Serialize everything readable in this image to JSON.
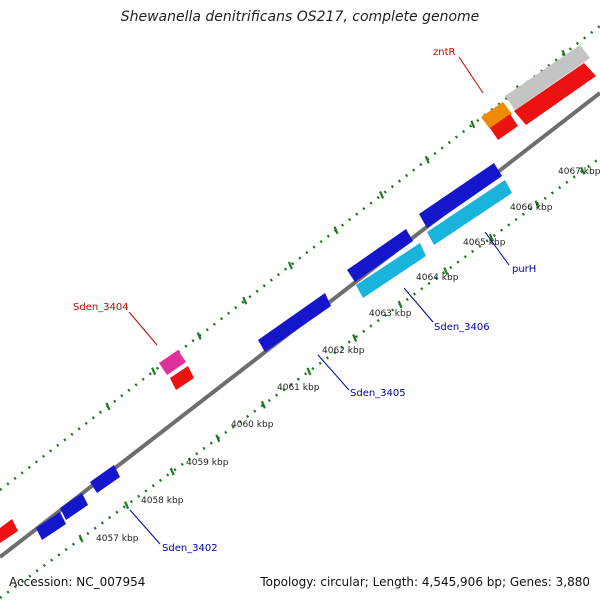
{
  "title": "Shewanella denitrificans OS217, complete genome",
  "footer": {
    "accession": "Accession: NC_007954",
    "stats": "Topology: circular; Length: 4,545,906 bp; Genes: 3,880"
  },
  "colors": {
    "backbone": "#6e6e6e",
    "ticks": "#1e7a1e",
    "label_red": "#cc0000",
    "label_blue": "#0000aa",
    "gene_red": "#ee1111",
    "gene_blue": "#1515cc",
    "gene_cyan": "#18b4dc",
    "gene_pink": "#e0309a",
    "gene_orange": "#f08a00",
    "gene_grey": "#bdbdbd"
  },
  "diagram": {
    "kbp_labels": [
      "4057 kbp",
      "4058 kbp",
      "4059 kbp",
      "4060 kbp",
      "4061 kbp",
      "4062 kbp",
      "4063 kbp",
      "4064 kbp",
      "4065 kbp",
      "4066 kbp",
      "4067 kbp"
    ],
    "gene_labels": [
      {
        "text": "zntR",
        "color": "red"
      },
      {
        "text": "Sden_3404",
        "color": "red"
      },
      {
        "text": "purH",
        "color": "blue"
      },
      {
        "text": "Sden_3406",
        "color": "blue"
      },
      {
        "text": "Sden_3405",
        "color": "blue"
      },
      {
        "text": "Sden_3402",
        "color": "blue"
      }
    ]
  }
}
